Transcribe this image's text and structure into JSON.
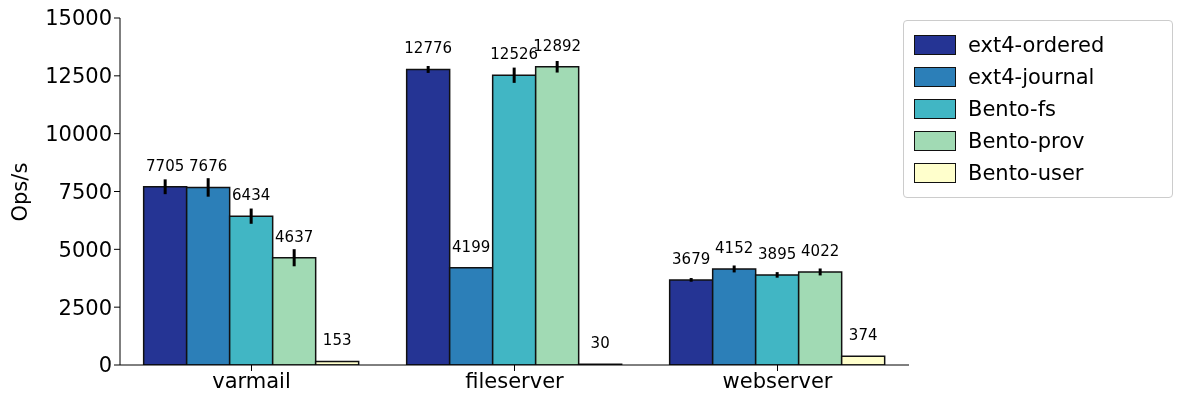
{
  "chart_data": {
    "type": "bar",
    "ylabel": "Ops/s",
    "categories": [
      "varmail",
      "fileserver",
      "webserver"
    ],
    "series": [
      {
        "name": "ext4-ordered",
        "color": "#253494",
        "values": [
          7705,
          12776,
          3679
        ],
        "errors": [
          320,
          150,
          80
        ]
      },
      {
        "name": "ext4-journal",
        "color": "#2c7fb8",
        "values": [
          7676,
          4199,
          4152
        ],
        "errors": [
          400,
          null,
          150
        ]
      },
      {
        "name": "Bento-fs",
        "color": "#41b6c4",
        "values": [
          6434,
          12526,
          3895
        ],
        "errors": [
          330,
          330,
          120
        ]
      },
      {
        "name": "Bento-prov",
        "color": "#a1dab4",
        "values": [
          4637,
          12892,
          4022
        ],
        "errors": [
          370,
          250,
          150
        ]
      },
      {
        "name": "Bento-user",
        "color": "#ffffcc",
        "values": [
          153,
          30,
          374
        ],
        "errors": [
          null,
          null,
          null
        ]
      }
    ],
    "ylim": [
      0,
      15000
    ],
    "yticks": [
      0,
      2500,
      5000,
      7500,
      10000,
      12500,
      15000
    ],
    "data_labels": true,
    "legend": "top right"
  }
}
